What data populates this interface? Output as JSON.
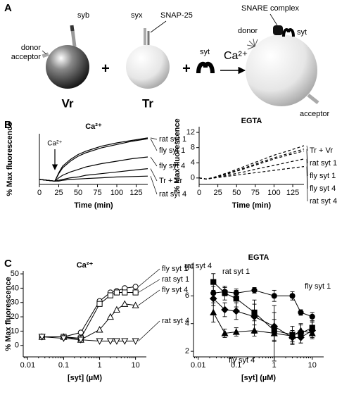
{
  "diagram": {
    "panel": "A",
    "labels": [
      "syb",
      "donor",
      "acceptor",
      "Vr",
      "syx",
      "SNAP-25",
      "Tr",
      "syt",
      "Ca²⁺",
      "SNARE complex",
      "donor",
      "syt",
      "acceptor",
      "+",
      "+"
    ]
  },
  "chart_data": [
    {
      "type": "line",
      "panel": "B",
      "title": "Ca²⁺",
      "xlabel": "Time (min)",
      "ylabel": "% Max fluorescence",
      "x": [
        0,
        10,
        20,
        25,
        30,
        40,
        50,
        60,
        80,
        100,
        120,
        140
      ],
      "xlim": [
        0,
        140
      ],
      "xticks": [
        0,
        25,
        50,
        75,
        100,
        125
      ],
      "ylim": [
        -6,
        55
      ],
      "annotations": [
        {
          "text": "Ca²⁺",
          "x": 20
        }
      ],
      "series": [
        {
          "name": "rat syt 1",
          "color": "#000000",
          "line_style": "solid",
          "values": [
            0,
            -1,
            -2,
            8,
            16,
            24,
            30,
            34,
            40,
            44,
            47,
            50
          ]
        },
        {
          "name": "fly syt 1",
          "color": "#000000",
          "line_style": "solid",
          "values": [
            0,
            -1,
            -2,
            7,
            14,
            22,
            28,
            32,
            38,
            42,
            46,
            49
          ]
        },
        {
          "name": "fly syt 4",
          "color": "#000000",
          "line_style": "solid",
          "values": [
            0,
            -1,
            -2,
            2,
            5,
            9,
            12,
            15,
            19,
            22,
            25,
            27
          ]
        },
        {
          "name": "Tr + Vr",
          "color": "#000000",
          "line_style": "solid",
          "values": [
            0,
            -1,
            -2,
            -1,
            0,
            2,
            3,
            5,
            7,
            9,
            11,
            13
          ]
        },
        {
          "name": "rat syt 4",
          "color": "#000000",
          "line_style": "solid",
          "values": [
            0,
            -1,
            -2,
            -2,
            -1,
            0,
            0.5,
            1,
            2,
            3,
            3.5,
            4
          ]
        }
      ]
    },
    {
      "type": "line",
      "title": "EGTA",
      "xlabel": "Time (min)",
      "ylabel": "% Max fluorescence",
      "x": [
        0,
        10,
        20,
        40,
        60,
        80,
        100,
        120,
        140
      ],
      "xlim": [
        0,
        140
      ],
      "xticks": [
        0,
        25,
        50,
        75,
        100,
        125
      ],
      "ylim": [
        -1.7,
        13.5
      ],
      "yticks": [
        0,
        4,
        8,
        12
      ],
      "series": [
        {
          "name": "Tr + Vr",
          "color": "#000000",
          "line_style": "dashed",
          "values": [
            0,
            -0.3,
            0.2,
            1.5,
            3,
            4.5,
            6,
            7.2,
            8.5
          ]
        },
        {
          "name": "rat syt 1",
          "color": "#000000",
          "line_style": "dashed",
          "values": [
            0,
            -0.3,
            0.2,
            1.3,
            2.6,
            4,
            5.3,
            6.5,
            7.6
          ]
        },
        {
          "name": "fly syt 1",
          "color": "#000000",
          "line_style": "dashed",
          "values": [
            0,
            -0.3,
            0.1,
            1.2,
            2.4,
            3.7,
            5,
            6.1,
            7.1
          ]
        },
        {
          "name": "fly syt 4",
          "color": "#000000",
          "line_style": "dashed",
          "values": [
            0,
            -0.3,
            0,
            0.8,
            1.6,
            2.5,
            3.3,
            4.2,
            5
          ]
        },
        {
          "name": "rat syt 4",
          "color": "#000000",
          "line_style": "dashed",
          "values": [
            0,
            -0.3,
            0,
            0.5,
            1,
            1.5,
            2,
            2.5,
            3
          ]
        }
      ]
    },
    {
      "type": "line",
      "panel": "C",
      "title": "Ca²⁺",
      "xlabel": "[syt] (µM)",
      "ylabel": "% Max fluorescence",
      "xscale": "log",
      "x": [
        0.025,
        0.1,
        0.3,
        1,
        2,
        3,
        5,
        10
      ],
      "xlim": [
        0.0075,
        20
      ],
      "xticks": [
        0.01,
        0.1,
        1,
        10
      ],
      "ylim": [
        -8,
        52
      ],
      "yticks": [
        0,
        10,
        20,
        30,
        40,
        50
      ],
      "series": [
        {
          "name": "fly syt 1",
          "color": "#000000",
          "line_style": "solid",
          "marker": "circle-open",
          "values": [
            6,
            6,
            9,
            31,
            37,
            38,
            40,
            41
          ]
        },
        {
          "name": "rat syt 1",
          "color": "#000000",
          "line_style": "solid",
          "marker": "square-open",
          "values": [
            6,
            6,
            5,
            29,
            35,
            37,
            37,
            37
          ]
        },
        {
          "name": "fly syt 4",
          "color": "#000000",
          "line_style": "solid",
          "marker": "triangle-open",
          "values": [
            6,
            6,
            4,
            11,
            20,
            25,
            29,
            28
          ]
        },
        {
          "name": "rat syt 4",
          "color": "#000000",
          "line_style": "solid",
          "marker": "triangle-down-open",
          "values": [
            6,
            5,
            4,
            3,
            3,
            3,
            3,
            3
          ]
        }
      ]
    },
    {
      "type": "line",
      "title": "EGTA",
      "xlabel": "[syt] (µM)",
      "xscale": "log",
      "x": [
        0.025,
        0.05,
        0.1,
        0.3,
        1,
        3,
        5,
        10
      ],
      "xlim": [
        0.0075,
        20
      ],
      "xticks": [
        0.01,
        0.1,
        1,
        10
      ],
      "ylim": [
        1.6,
        8.4
      ],
      "yticks": [
        2,
        4,
        6,
        8
      ],
      "series": [
        {
          "name": "fly syt 1",
          "color": "#000000",
          "line_style": "solid",
          "marker": "circle",
          "values": [
            6.2,
            6.3,
            6.2,
            6.4,
            6.0,
            6.0,
            4.8,
            4.5
          ],
          "errors": [
            0.5,
            0.3,
            0.3,
            0.2,
            0.4,
            0.3,
            0.2,
            0.3
          ]
        },
        {
          "name": "rat syt 1",
          "color": "#000000",
          "line_style": "solid",
          "marker": "square",
          "values": [
            7.0,
            6.2,
            5.8,
            4.8,
            3.5,
            3.2,
            3.3,
            3.7
          ],
          "errors": [
            0.6,
            0.5,
            0.6,
            0.6,
            0.8,
            0.6,
            0.7,
            0.5
          ]
        },
        {
          "name": "rat syt 4",
          "color": "#000000",
          "line_style": "solid",
          "marker": "diamond",
          "values": [
            5.8,
            5.0,
            4.9,
            4.5,
            3.8,
            3.0,
            3.0,
            3.5
          ],
          "errors": [
            0.5,
            0.5,
            0.6,
            1.2,
            1.0,
            0.5,
            0.4,
            0.6
          ]
        },
        {
          "name": "fly syt 4",
          "color": "#000000",
          "line_style": "solid",
          "marker": "triangle",
          "values": [
            4.8,
            3.3,
            3.4,
            3.5,
            3.3,
            3.1,
            3.5,
            3.3
          ],
          "errors": [
            0.7,
            0.3,
            0.3,
            0.4,
            2.0,
            0.4,
            0.4,
            0.3
          ]
        }
      ]
    }
  ]
}
